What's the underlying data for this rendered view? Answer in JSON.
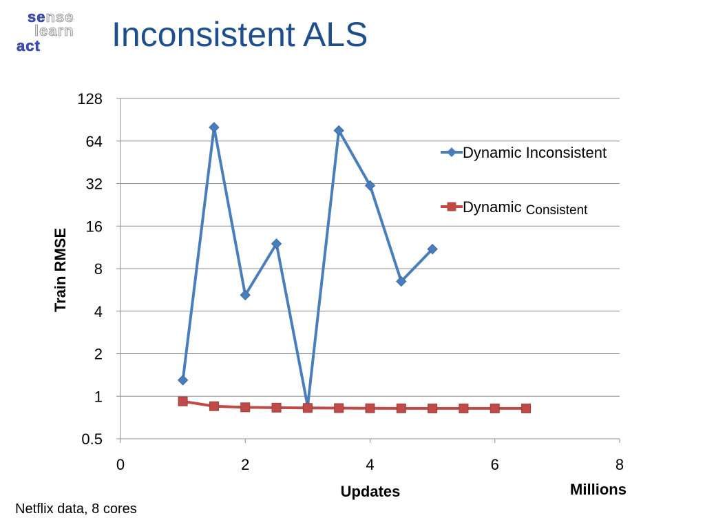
{
  "logo": {
    "line1_hl": "se",
    "line1_rest": "nse",
    "line2": "learn",
    "line3_hl": "act"
  },
  "title": "Inconsistent ALS",
  "note": "Netflix data, 8 cores",
  "chart_data": {
    "type": "line",
    "x": [],
    "xlabel": "Updates",
    "xunit_label": "Millions",
    "ylabel": "Train RMSE",
    "ylog_base": 2,
    "ylim": [
      0.5,
      128
    ],
    "xlim": [
      0,
      8
    ],
    "yticks": [
      0.5,
      1,
      2,
      4,
      8,
      16,
      32,
      64,
      128
    ],
    "ytick_labels": [
      "0.5",
      "1",
      "2",
      "4",
      "8",
      "16",
      "32",
      "64",
      "128"
    ],
    "xticks": [
      0,
      2,
      4,
      6,
      8
    ],
    "xtick_labels": [
      "0",
      "2",
      "4",
      "6",
      "8"
    ],
    "grid": "horizontal",
    "legend_position": "right",
    "series": [
      {
        "name": "Dynamic Inconsistent",
        "color": "#4a7ebb",
        "marker": "diamond",
        "points": [
          [
            1.0,
            1.3
          ],
          [
            1.5,
            80
          ],
          [
            2.0,
            5.2
          ],
          [
            2.5,
            12
          ],
          [
            3.0,
            0.85
          ],
          [
            3.5,
            76
          ],
          [
            4.0,
            31
          ],
          [
            4.5,
            6.5
          ],
          [
            5.0,
            11
          ]
        ]
      },
      {
        "name_main": "Dynamic",
        "name_small": "Consistent",
        "color": "#be4b48",
        "marker": "square",
        "points": [
          [
            1.0,
            0.92
          ],
          [
            1.5,
            0.85
          ],
          [
            2.0,
            0.835
          ],
          [
            2.5,
            0.83
          ],
          [
            3.0,
            0.826
          ],
          [
            3.5,
            0.824
          ],
          [
            4.0,
            0.822
          ],
          [
            4.5,
            0.821
          ],
          [
            5.0,
            0.82
          ],
          [
            5.5,
            0.82
          ],
          [
            6.0,
            0.82
          ],
          [
            6.5,
            0.82
          ]
        ]
      }
    ]
  }
}
